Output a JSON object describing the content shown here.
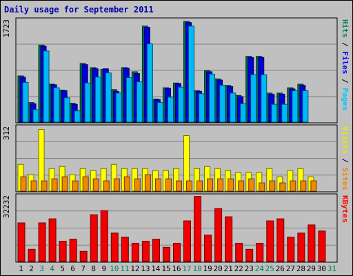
{
  "chart_data": {
    "title": "Daily usage for September 2011",
    "type": "bar",
    "days": [
      "1",
      "2",
      "3",
      "4",
      "5",
      "6",
      "7",
      "8",
      "9",
      "10",
      "11",
      "12",
      "13",
      "14",
      "15",
      "16",
      "17",
      "18",
      "19",
      "20",
      "21",
      "22",
      "23",
      "24",
      "25",
      "26",
      "27",
      "28",
      "29",
      "30",
      "31"
    ],
    "weekend_days": [
      "3",
      "4",
      "10",
      "11",
      "17",
      "18",
      "24",
      "25",
      "31"
    ],
    "panels": [
      {
        "name": "pages-files-hits",
        "ymax_label": "1723",
        "ymax": 1723,
        "labels": [
          {
            "text": "Hits",
            "color": "#00805a"
          },
          {
            "text": " / ",
            "color": "#000000"
          },
          {
            "text": "Files",
            "color": "#0000ff"
          },
          {
            "text": " / ",
            "color": "#000000"
          },
          {
            "text": "Pages",
            "color": "#00c8ff"
          }
        ],
        "series": [
          {
            "name": "Hits",
            "color": "#006d48",
            "values": [
              780,
              330,
              1300,
              640,
              540,
              320,
              990,
              920,
              890,
              550,
              920,
              850,
              1620,
              390,
              580,
              660,
              1700,
              530,
              870,
              730,
              620,
              450,
              1110,
              1110,
              490,
              490,
              580,
              640,
              0,
              0,
              0
            ]
          },
          {
            "name": "Files",
            "color": "#0000d8",
            "values": [
              760,
              310,
              1280,
              630,
              530,
              300,
              970,
              900,
              900,
              520,
              910,
              820,
              1600,
              380,
              570,
              650,
              1680,
              520,
              850,
              710,
              600,
              430,
              1090,
              1090,
              470,
              470,
              560,
              620,
              0,
              0,
              0
            ]
          },
          {
            "name": "Pages",
            "color": "#00b8f8",
            "values": [
              670,
              210,
              1200,
              580,
              410,
              190,
              660,
              760,
              830,
              490,
              750,
              680,
              1320,
              330,
              420,
              590,
              1620,
              480,
              810,
              620,
              490,
              310,
              800,
              800,
              300,
              300,
              530,
              530,
              0,
              0,
              0
            ]
          }
        ]
      },
      {
        "name": "visits-sites",
        "ymax_label": "312",
        "ymax": 312,
        "labels": [
          {
            "text": "Visits",
            "color": "#e8e800"
          },
          {
            "text": " / ",
            "color": "#000000"
          },
          {
            "text": "Sites",
            "color": "#f08800"
          }
        ],
        "series": [
          {
            "name": "Visits",
            "color": "#ffff00",
            "values": [
              130,
              80,
              300,
              110,
              120,
              80,
              110,
              100,
              110,
              130,
              110,
              110,
              110,
              100,
              100,
              110,
              270,
              110,
              120,
              110,
              100,
              90,
              90,
              90,
              110,
              70,
              100,
              110,
              70,
              0,
              0
            ]
          },
          {
            "name": "Sites",
            "color": "#f08800",
            "values": [
              70,
              50,
              50,
              60,
              70,
              50,
              70,
              60,
              50,
              60,
              70,
              60,
              80,
              60,
              60,
              50,
              50,
              50,
              60,
              60,
              60,
              50,
              60,
              40,
              50,
              40,
              50,
              50,
              50,
              0,
              0
            ]
          }
        ]
      },
      {
        "name": "kbytes",
        "ymax_label": "32232",
        "ymax": 32232,
        "labels": [
          {
            "text": "KBytes",
            "color": "#ff0000"
          }
        ],
        "series": [
          {
            "name": "KBytes",
            "color": "#f00000",
            "values": [
              19000,
              6000,
              19000,
              21000,
              10000,
              11000,
              5000,
              23000,
              25000,
              14000,
              12000,
              9000,
              10000,
              11000,
              7000,
              9000,
              20000,
              32000,
              13000,
              26000,
              22000,
              9000,
              6000,
              9000,
              20000,
              21000,
              12000,
              14000,
              18000,
              15000,
              0
            ]
          }
        ]
      }
    ]
  }
}
